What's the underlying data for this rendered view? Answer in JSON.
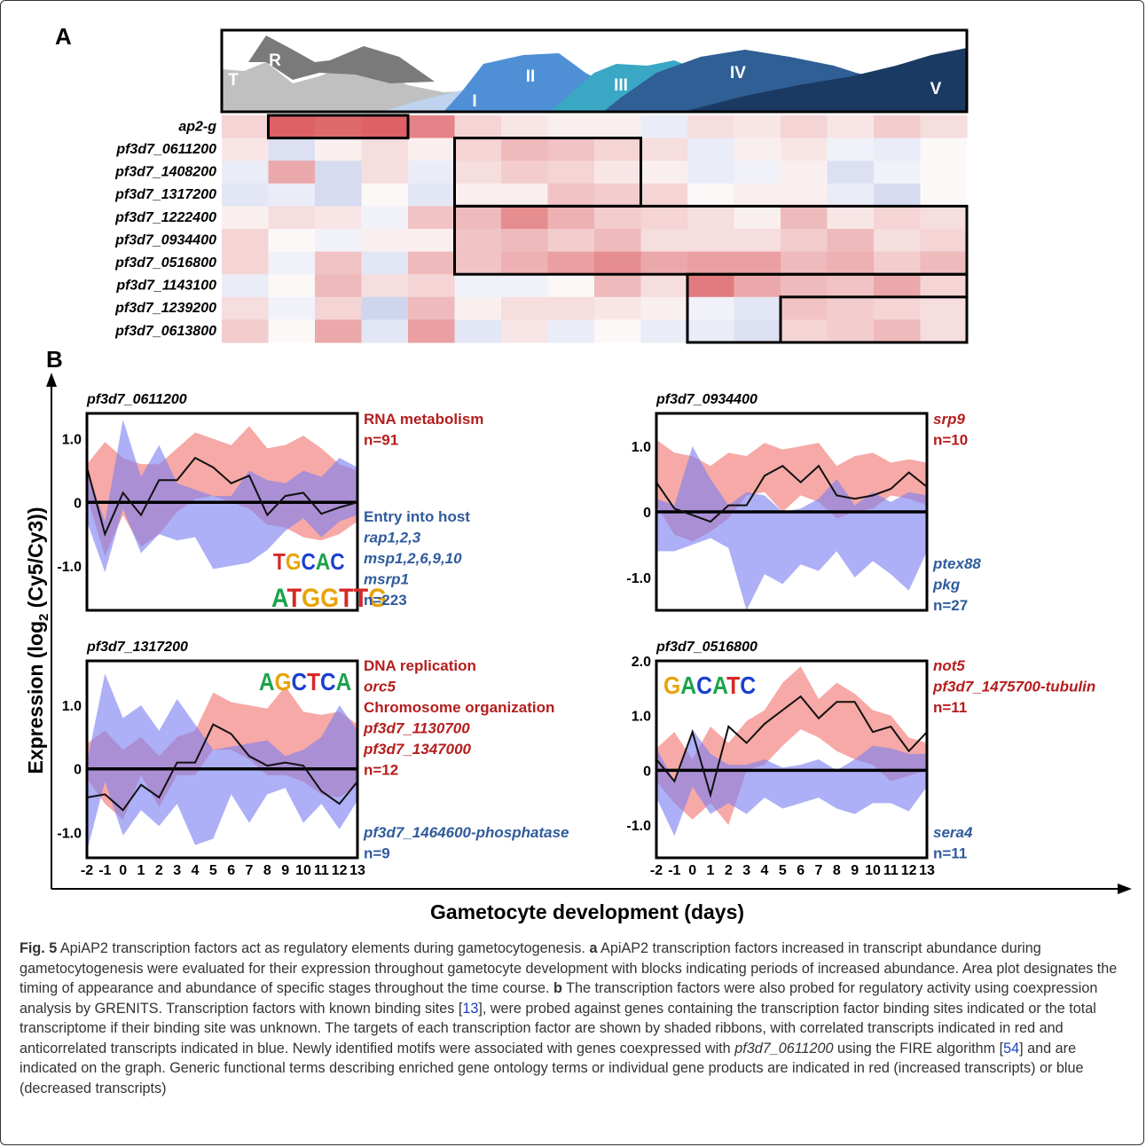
{
  "panel_a": {
    "label": "A",
    "stages": [
      "T",
      "R",
      "I",
      "II",
      "III",
      "IV",
      "V"
    ],
    "stage_colors": [
      "#c0c0c0",
      "#7a7a7a",
      "#bfd3ee",
      "#4f8fd6",
      "#3aa8c4",
      "#2f5f95",
      "#1b3a63"
    ],
    "genes": [
      "ap2-g",
      "pf3d7_0611200",
      "pf3d7_1408200",
      "pf3d7_1317200",
      "pf3d7_1222400",
      "pf3d7_0934400",
      "pf3d7_0516800",
      "pf3d7_1143100",
      "pf3d7_1239200",
      "pf3d7_0613800"
    ],
    "heatmap_values": [
      [
        0.2,
        0.85,
        0.8,
        0.85,
        0.65,
        0.2,
        0.1,
        0.05,
        0.05,
        -0.1,
        0.15,
        0.1,
        0.2,
        0.1,
        0.25,
        0.15
      ],
      [
        0.1,
        -0.2,
        0.05,
        0.15,
        0.05,
        0.2,
        0.35,
        0.3,
        0.2,
        0.15,
        -0.1,
        0.05,
        0.1,
        -0.05,
        -0.1,
        0.0
      ],
      [
        -0.1,
        0.45,
        -0.25,
        0.15,
        -0.1,
        0.15,
        0.25,
        0.2,
        0.1,
        0.05,
        -0.1,
        -0.05,
        0.05,
        -0.2,
        -0.05,
        0.0
      ],
      [
        -0.15,
        -0.1,
        -0.25,
        0.0,
        -0.15,
        0.05,
        0.05,
        0.3,
        0.25,
        0.2,
        0.0,
        0.05,
        0.05,
        -0.1,
        -0.25,
        0.0
      ],
      [
        0.05,
        0.15,
        0.1,
        -0.05,
        0.3,
        0.35,
        0.6,
        0.4,
        0.25,
        0.2,
        0.15,
        0.05,
        0.35,
        0.1,
        0.2,
        0.15
      ],
      [
        0.2,
        0.0,
        -0.05,
        0.05,
        0.05,
        0.3,
        0.35,
        0.25,
        0.35,
        0.15,
        0.15,
        0.15,
        0.25,
        0.35,
        0.15,
        0.2
      ],
      [
        0.2,
        -0.05,
        0.3,
        -0.15,
        0.35,
        0.3,
        0.4,
        0.5,
        0.6,
        0.45,
        0.5,
        0.5,
        0.35,
        0.4,
        0.25,
        0.35
      ],
      [
        -0.1,
        0.0,
        0.35,
        0.15,
        0.2,
        -0.05,
        -0.05,
        0.0,
        0.35,
        0.15,
        0.7,
        0.45,
        0.35,
        0.3,
        0.45,
        0.2
      ],
      [
        0.15,
        -0.05,
        0.2,
        -0.3,
        0.35,
        0.05,
        0.15,
        0.15,
        0.1,
        0.05,
        -0.05,
        -0.15,
        0.3,
        0.25,
        0.2,
        0.15
      ],
      [
        0.25,
        0.0,
        0.45,
        -0.15,
        0.5,
        -0.15,
        0.1,
        -0.1,
        0.0,
        -0.1,
        -0.1,
        -0.2,
        0.2,
        0.25,
        0.35,
        0.15
      ]
    ],
    "blocks": [
      [
        0,
        1,
        4
      ],
      [
        1,
        5,
        9
      ],
      [
        4,
        5,
        16
      ],
      [
        7,
        10,
        16
      ],
      [
        8,
        12,
        16
      ]
    ]
  },
  "panel_b": {
    "label": "B",
    "y_axis_label": "Expression (log",
    "y_axis_sub": "2",
    "y_axis_label_tail": " (Cy5/Cy3))",
    "x_axis_label": "Gametocyte development (days)",
    "x_ticks": [
      "-2",
      "-1",
      "0",
      "1",
      "2",
      "3",
      "4",
      "5",
      "6",
      "7",
      "8",
      "9",
      "10",
      "11",
      "12",
      "13"
    ],
    "plots": [
      {
        "title": "pf3d7_0611200",
        "y_ticks": [
          "1.0",
          "0",
          "-1.0"
        ],
        "motif": [
          "TGCAC",
          "ATGGTTG"
        ],
        "line": [
          0.55,
          -0.5,
          0.15,
          -0.2,
          0.35,
          0.35,
          0.7,
          0.55,
          0.3,
          0.42,
          -0.2,
          0.1,
          0.15,
          -0.18,
          -0.08,
          0.0
        ],
        "red_upper": [
          0.6,
          0.95,
          0.7,
          0.6,
          0.6,
          0.85,
          1.1,
          1.0,
          0.9,
          1.2,
          0.85,
          0.9,
          1.05,
          0.85,
          0.6,
          0.5
        ],
        "red_lower": [
          0.1,
          -0.85,
          -0.2,
          -0.7,
          -0.5,
          -0.15,
          0.05,
          0.1,
          0.0,
          -0.1,
          -0.35,
          -0.4,
          -0.55,
          -0.6,
          -0.5,
          -0.3
        ],
        "blue_upper": [
          0.5,
          -0.3,
          1.3,
          0.4,
          0.9,
          0.3,
          0.2,
          0.1,
          0.1,
          0.5,
          0.35,
          0.3,
          0.5,
          0.4,
          0.7,
          0.55
        ],
        "blue_lower": [
          -0.3,
          -1.1,
          -0.1,
          -0.8,
          -0.5,
          -0.6,
          -0.55,
          -1.05,
          -1.0,
          -0.95,
          -0.75,
          -0.45,
          -0.25,
          -0.55,
          -0.3,
          -0.2
        ],
        "labels_red": [
          "RNA metabolism",
          "n=91"
        ],
        "labels_blue": [
          "Entry into host",
          "rap1,2,3",
          "msp1,2,6,9,10",
          "msrp1",
          "n=223"
        ]
      },
      {
        "title": "pf3d7_0934400",
        "y_ticks": [
          "1.0",
          "0",
          "-1.0"
        ],
        "line": [
          0.45,
          0.05,
          -0.05,
          -0.15,
          0.1,
          0.1,
          0.55,
          0.7,
          0.45,
          0.7,
          0.25,
          0.2,
          0.25,
          0.35,
          0.6,
          0.38
        ],
        "red_upper": [
          1.1,
          0.9,
          0.85,
          0.7,
          0.9,
          0.85,
          1.05,
          0.95,
          1.0,
          1.05,
          0.7,
          0.85,
          0.9,
          0.75,
          0.8,
          0.75
        ],
        "red_lower": [
          0.1,
          -0.35,
          -0.45,
          -0.3,
          -0.1,
          0.25,
          0.3,
          0.0,
          0.25,
          0.15,
          -0.1,
          0.0,
          0.05,
          0.25,
          0.2,
          0.1
        ],
        "blue_upper": [
          0.2,
          0.1,
          1.0,
          0.5,
          0.1,
          0.3,
          0.25,
          0.0,
          0.05,
          0.2,
          0.5,
          0.1,
          0.3,
          0.15,
          0.3,
          0.25
        ],
        "blue_lower": [
          -0.6,
          -0.6,
          -0.5,
          -0.4,
          -0.55,
          -1.5,
          -0.95,
          -1.1,
          -0.8,
          -0.9,
          -0.6,
          -1.0,
          -0.75,
          -0.95,
          -1.2,
          -0.6
        ],
        "labels_red": [
          "srp9",
          "n=10"
        ],
        "labels_blue": [
          "ptex88",
          "pkg",
          "n=27"
        ]
      },
      {
        "title": "pf3d7_1317200",
        "y_ticks": [
          "1.0",
          "0",
          "-1.0"
        ],
        "motif": [
          "AGCTCA"
        ],
        "line": [
          -0.45,
          -0.4,
          -0.65,
          -0.25,
          -0.45,
          0.1,
          0.1,
          0.7,
          0.55,
          0.2,
          0.05,
          0.1,
          0.05,
          -0.35,
          -0.55,
          -0.2
        ],
        "red_upper": [
          0.4,
          0.6,
          0.3,
          0.5,
          0.2,
          0.5,
          0.6,
          1.2,
          1.05,
          1.0,
          0.95,
          1.3,
          0.9,
          0.85,
          0.9,
          0.7
        ],
        "red_lower": [
          -0.15,
          -0.55,
          -0.8,
          -0.1,
          -0.6,
          -0.1,
          -0.1,
          0.3,
          0.3,
          0.15,
          -0.1,
          -0.1,
          -0.2,
          -0.4,
          -0.45,
          -0.25
        ],
        "blue_upper": [
          0.1,
          1.5,
          0.8,
          1.0,
          0.6,
          1.1,
          0.7,
          0.3,
          0.35,
          0.4,
          0.45,
          0.2,
          0.3,
          0.5,
          1.0,
          0.6
        ],
        "blue_lower": [
          -1.3,
          -0.2,
          -1.05,
          -0.65,
          -0.9,
          -0.55,
          -1.2,
          -1.1,
          -0.4,
          -0.85,
          -0.4,
          -0.3,
          -0.85,
          -0.55,
          -0.95,
          -0.5
        ],
        "labels_red": [
          "DNA replication",
          "orc5",
          "Chromosome organization",
          "pf3d7_1130700",
          "pf3d7_1347000",
          "n=12"
        ],
        "labels_blue": [
          "pf3d7_1464600-phosphatase",
          "n=9"
        ]
      },
      {
        "title": "pf3d7_0516800",
        "y_ticks": [
          "2.0",
          "1.0",
          "0",
          "-1.0"
        ],
        "motif": [
          "GACATC"
        ],
        "line": [
          0.2,
          -0.2,
          0.7,
          -0.45,
          0.8,
          0.5,
          0.85,
          1.1,
          1.35,
          0.95,
          1.25,
          1.25,
          0.7,
          0.8,
          0.35,
          0.7
        ],
        "red_upper": [
          0.4,
          0.7,
          0.2,
          0.8,
          0.5,
          0.9,
          1.1,
          1.6,
          1.9,
          1.3,
          1.6,
          1.4,
          1.1,
          1.0,
          0.6,
          0.5
        ],
        "red_lower": [
          -0.2,
          -0.6,
          -0.9,
          -0.6,
          -1.0,
          0.0,
          0.1,
          0.45,
          0.75,
          0.6,
          0.35,
          0.2,
          0.1,
          -0.2,
          -0.1,
          0.0
        ],
        "blue_upper": [
          0.4,
          -0.2,
          0.75,
          0.3,
          0.1,
          0.1,
          0.2,
          0.05,
          0.1,
          0.2,
          0.0,
          0.2,
          0.45,
          0.4,
          0.3,
          0.3
        ],
        "blue_lower": [
          -0.5,
          -1.2,
          -0.3,
          -0.8,
          -0.6,
          -0.8,
          -0.5,
          -0.7,
          -0.6,
          -0.5,
          -0.7,
          -0.8,
          -0.6,
          -0.6,
          -0.75,
          -0.3
        ],
        "labels_red": [
          "not5",
          "pf3d7_1475700-tubulin",
          "n=11"
        ],
        "labels_blue": [
          "sera4",
          "n=11"
        ]
      }
    ]
  },
  "caption": {
    "lead": "Fig. 5",
    "p1": " ApiAP2 transcription factors act as regulatory elements during gametocytogenesis. ",
    "a_letter": "a",
    "p2": " ApiAP2 transcription factors increased in transcript abundance during gametocytogenesis were evaluated for their expression throughout gametocyte development with blocks indicating periods of increased abundance. Area plot designates the timing of appearance and abundance of specific stages throughout the time course. ",
    "b_letter": "b",
    "p3": " The transcription factors were also probed for regulatory activity using coexpression analysis by GRENITS. Transcription factors with known binding sites [",
    "ref1": "13",
    "p4": "], were probed against genes containing the transcription factor binding sites indicated or the total transcriptome if their binding site was unknown. The targets of each transcription factor are shown by shaded ribbons, with correlated transcripts indicated in red and anticorrelated transcripts indicated in blue. Newly identified motifs were associated with genes coexpressed with ",
    "gene": "pf3d7_0611200",
    "p5": " using the FIRE algorithm [",
    "ref2": "54",
    "p6": "] and are indicated on the graph. Generic functional terms describing enriched gene ontology terms or individual gene products are indicated in red (increased transcripts) or blue (decreased transcripts)"
  }
}
